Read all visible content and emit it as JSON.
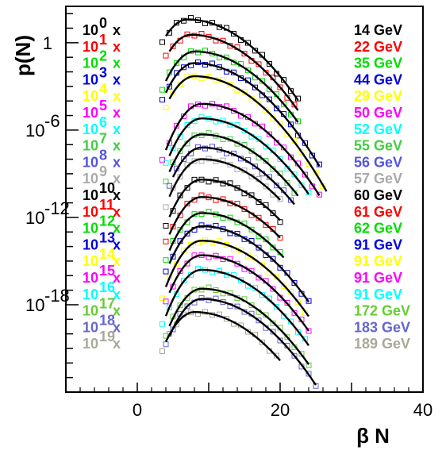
{
  "chart_data": {
    "type": "scatter",
    "title": "",
    "xlabel": "β N",
    "ylabel": "p(N)",
    "xlim": [
      -10,
      40
    ],
    "ylog": true,
    "ylim_exp": [
      -24,
      2.5
    ],
    "grid": false,
    "x_ticks": [
      {
        "value": 0,
        "label": "0"
      },
      {
        "value": 20,
        "label": "20"
      },
      {
        "value": 40,
        "label": "40"
      }
    ],
    "y_ticks": [
      {
        "exp": 0,
        "label": "1",
        "sup": ""
      },
      {
        "exp": -6,
        "label": "10",
        "sup": "-6"
      },
      {
        "exp": -12,
        "label": "10",
        "sup": "-12"
      },
      {
        "exp": -18,
        "label": "10",
        "sup": "-18"
      }
    ],
    "series": [
      {
        "name": "14 GeV",
        "factor": "10",
        "factor_exp": "0",
        "color": "#000000",
        "peak_x": 7,
        "peak_log": 1.6,
        "xmin": 3.5,
        "xmax": 22.5
      },
      {
        "name": "22 GeV",
        "factor": "10",
        "factor_exp": "1",
        "color": "#ff0000",
        "peak_x": 7.5,
        "peak_log": 0.55,
        "xmin": 4,
        "xmax": 22.5
      },
      {
        "name": "35 GeV",
        "factor": "10",
        "factor_exp": "2",
        "color": "#00dd00",
        "peak_x": 8,
        "peak_log": -0.6,
        "xmin": 3.5,
        "xmax": 22.5
      },
      {
        "name": "44 GeV",
        "factor": "10",
        "factor_exp": "3",
        "color": "#0000dd",
        "peak_x": 8,
        "peak_log": -1.4,
        "xmin": 3.5,
        "xmax": 25.5
      },
      {
        "name": "29 GeV",
        "factor": "10",
        "factor_exp": "4",
        "color": "#ffff00",
        "peak_x": 8,
        "peak_log": -2.3,
        "xmin": 4,
        "xmax": 26.5
      },
      {
        "name": "50 GeV",
        "factor": "10",
        "factor_exp": "5",
        "color": "#ff00ff",
        "peak_x": 9,
        "peak_log": -4.2,
        "xmin": 3.5,
        "xmax": 25.5
      },
      {
        "name": "52 GeV",
        "factor": "10",
        "factor_exp": "6",
        "color": "#00ffff",
        "peak_x": 9,
        "peak_log": -5.2,
        "xmin": 4,
        "xmax": 24
      },
      {
        "name": "55 GeV",
        "factor": "10",
        "factor_exp": "7",
        "color": "#44cc44",
        "peak_x": 9,
        "peak_log": -6.3,
        "xmin": 4,
        "xmax": 22.5
      },
      {
        "name": "56 GeV",
        "factor": "10",
        "factor_exp": "8",
        "color": "#5555dd",
        "peak_x": 9,
        "peak_log": -7.2,
        "xmin": 4.5,
        "xmax": 22
      },
      {
        "name": "57 GeV",
        "factor": "10",
        "factor_exp": "9",
        "color": "#aaaaaa",
        "peak_x": 9,
        "peak_log": -8.0,
        "xmin": 4,
        "xmax": 20
      },
      {
        "name": "60 GeV",
        "factor": "10",
        "factor_exp": "10",
        "color": "#000000",
        "peak_x": 9,
        "peak_log": -9.4,
        "xmin": 4,
        "xmax": 20
      },
      {
        "name": "61 GeV",
        "factor": "10",
        "factor_exp": "11",
        "color": "#ff0000",
        "peak_x": 9,
        "peak_log": -10.6,
        "xmin": 4,
        "xmax": 20
      },
      {
        "name": "62 GeV",
        "factor": "10",
        "factor_exp": "12",
        "color": "#00dd00",
        "peak_x": 9,
        "peak_log": -11.7,
        "xmin": 4,
        "xmax": 20.5
      },
      {
        "name": "91 GeV",
        "factor": "10",
        "factor_exp": "13",
        "color": "#0000dd",
        "peak_x": 9,
        "peak_log": -12.6,
        "xmin": 4,
        "xmax": 24
      },
      {
        "name": "91 GeV",
        "factor": "10",
        "factor_exp": "14",
        "color": "#ffff00",
        "peak_x": 9,
        "peak_log": -13.6,
        "xmin": 3.5,
        "xmax": 24
      },
      {
        "name": "91 GeV",
        "factor": "10",
        "factor_exp": "15",
        "color": "#ff00ff",
        "peak_x": 9,
        "peak_log": -14.6,
        "xmin": 4,
        "xmax": 24
      },
      {
        "name": "91 GeV",
        "factor": "10",
        "factor_exp": "16",
        "color": "#00ffff",
        "peak_x": 9,
        "peak_log": -15.6,
        "xmin": 3.5,
        "xmax": 24
      },
      {
        "name": "172 GeV",
        "factor": "10",
        "factor_exp": "17",
        "color": "#66cc33",
        "peak_x": 9,
        "peak_log": -16.9,
        "xmin": 4,
        "xmax": 24
      },
      {
        "name": "183 GeV",
        "factor": "10",
        "factor_exp": "18",
        "color": "#6666cc",
        "peak_x": 9,
        "peak_log": -17.6,
        "xmin": 4,
        "xmax": 25
      },
      {
        "name": "189 GeV",
        "factor": "10",
        "factor_exp": "19",
        "color": "#aaa899",
        "peak_x": 8,
        "peak_log": -18.5,
        "xmin": 3.5,
        "xmax": 20
      }
    ]
  }
}
